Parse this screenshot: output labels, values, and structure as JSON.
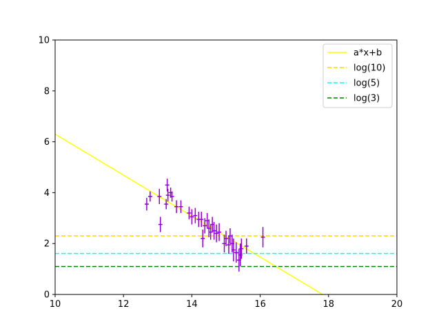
{
  "chart_data": {
    "type": "scatter",
    "xlim": [
      10,
      20
    ],
    "ylim": [
      0,
      10
    ],
    "x_ticks": [
      10,
      12,
      14,
      16,
      18,
      20
    ],
    "y_ticks": [
      0,
      2,
      4,
      6,
      8,
      10
    ],
    "grid": false,
    "legend_position": "top-right",
    "data_color": "#9400d3",
    "points": [
      {
        "x": 12.68,
        "y": 3.55,
        "yerr": 0.25,
        "xerr": 0.06
      },
      {
        "x": 12.78,
        "y": 3.85,
        "yerr": 0.2,
        "xerr": 0.06
      },
      {
        "x": 13.05,
        "y": 3.85,
        "yerr": 0.3,
        "xerr": 0.06
      },
      {
        "x": 13.08,
        "y": 2.75,
        "yerr": 0.3,
        "xerr": 0.06
      },
      {
        "x": 13.25,
        "y": 3.55,
        "yerr": 0.2,
        "xerr": 0.06
      },
      {
        "x": 13.28,
        "y": 4.3,
        "yerr": 0.25,
        "xerr": 0.06
      },
      {
        "x": 13.3,
        "y": 3.9,
        "yerr": 0.25,
        "xerr": 0.06
      },
      {
        "x": 13.38,
        "y": 4.0,
        "yerr": 0.2,
        "xerr": 0.06
      },
      {
        "x": 13.42,
        "y": 3.85,
        "yerr": 0.2,
        "xerr": 0.06
      },
      {
        "x": 13.55,
        "y": 3.45,
        "yerr": 0.25,
        "xerr": 0.06
      },
      {
        "x": 13.68,
        "y": 3.45,
        "yerr": 0.25,
        "xerr": 0.06
      },
      {
        "x": 13.92,
        "y": 3.2,
        "yerr": 0.25,
        "xerr": 0.06
      },
      {
        "x": 14.0,
        "y": 3.05,
        "yerr": 0.3,
        "xerr": 0.06
      },
      {
        "x": 14.1,
        "y": 3.1,
        "yerr": 0.3,
        "xerr": 0.06
      },
      {
        "x": 14.2,
        "y": 2.95,
        "yerr": 0.3,
        "xerr": 0.06
      },
      {
        "x": 14.28,
        "y": 2.95,
        "yerr": 0.3,
        "xerr": 0.06
      },
      {
        "x": 14.32,
        "y": 2.2,
        "yerr": 0.35,
        "xerr": 0.06
      },
      {
        "x": 14.38,
        "y": 2.7,
        "yerr": 0.3,
        "xerr": 0.06
      },
      {
        "x": 14.45,
        "y": 2.9,
        "yerr": 0.3,
        "xerr": 0.06
      },
      {
        "x": 14.5,
        "y": 2.6,
        "yerr": 0.35,
        "xerr": 0.06
      },
      {
        "x": 14.55,
        "y": 2.45,
        "yerr": 0.3,
        "xerr": 0.06
      },
      {
        "x": 14.6,
        "y": 2.75,
        "yerr": 0.3,
        "xerr": 0.06
      },
      {
        "x": 14.65,
        "y": 2.5,
        "yerr": 0.35,
        "xerr": 0.06
      },
      {
        "x": 14.72,
        "y": 2.4,
        "yerr": 0.35,
        "xerr": 0.06
      },
      {
        "x": 14.8,
        "y": 2.45,
        "yerr": 0.35,
        "xerr": 0.06
      },
      {
        "x": 14.95,
        "y": 2.0,
        "yerr": 0.35,
        "xerr": 0.06
      },
      {
        "x": 15.0,
        "y": 2.2,
        "yerr": 0.3,
        "xerr": 0.06
      },
      {
        "x": 15.08,
        "y": 1.95,
        "yerr": 0.35,
        "xerr": 0.06
      },
      {
        "x": 15.12,
        "y": 2.3,
        "yerr": 0.3,
        "xerr": 0.06
      },
      {
        "x": 15.18,
        "y": 2.0,
        "yerr": 0.35,
        "xerr": 0.06
      },
      {
        "x": 15.22,
        "y": 1.75,
        "yerr": 0.45,
        "xerr": 0.06
      },
      {
        "x": 15.3,
        "y": 1.65,
        "yerr": 0.4,
        "xerr": 0.06
      },
      {
        "x": 15.38,
        "y": 1.35,
        "yerr": 0.45,
        "xerr": 0.06
      },
      {
        "x": 15.42,
        "y": 1.55,
        "yerr": 0.45,
        "xerr": 0.06
      },
      {
        "x": 15.45,
        "y": 1.8,
        "yerr": 0.4,
        "xerr": 0.06
      },
      {
        "x": 15.6,
        "y": 1.9,
        "yerr": 0.3,
        "xerr": 0.06
      },
      {
        "x": 16.08,
        "y": 2.25,
        "yerr": 0.4,
        "xerr": 0.06
      }
    ],
    "lines": [
      {
        "name": "a*x+b",
        "style": "solid",
        "color": "#ffff00",
        "slope": -0.805,
        "intercept": 14.35
      },
      {
        "name": "log(10)",
        "style": "dashed",
        "color": "#ffd700",
        "y": 2.302585
      },
      {
        "name": "log(5)",
        "style": "dashed",
        "color": "#00ffff",
        "y": 1.609438
      },
      {
        "name": "log(3)",
        "style": "dashed",
        "color": "#008000",
        "y": 1.098612
      }
    ]
  }
}
